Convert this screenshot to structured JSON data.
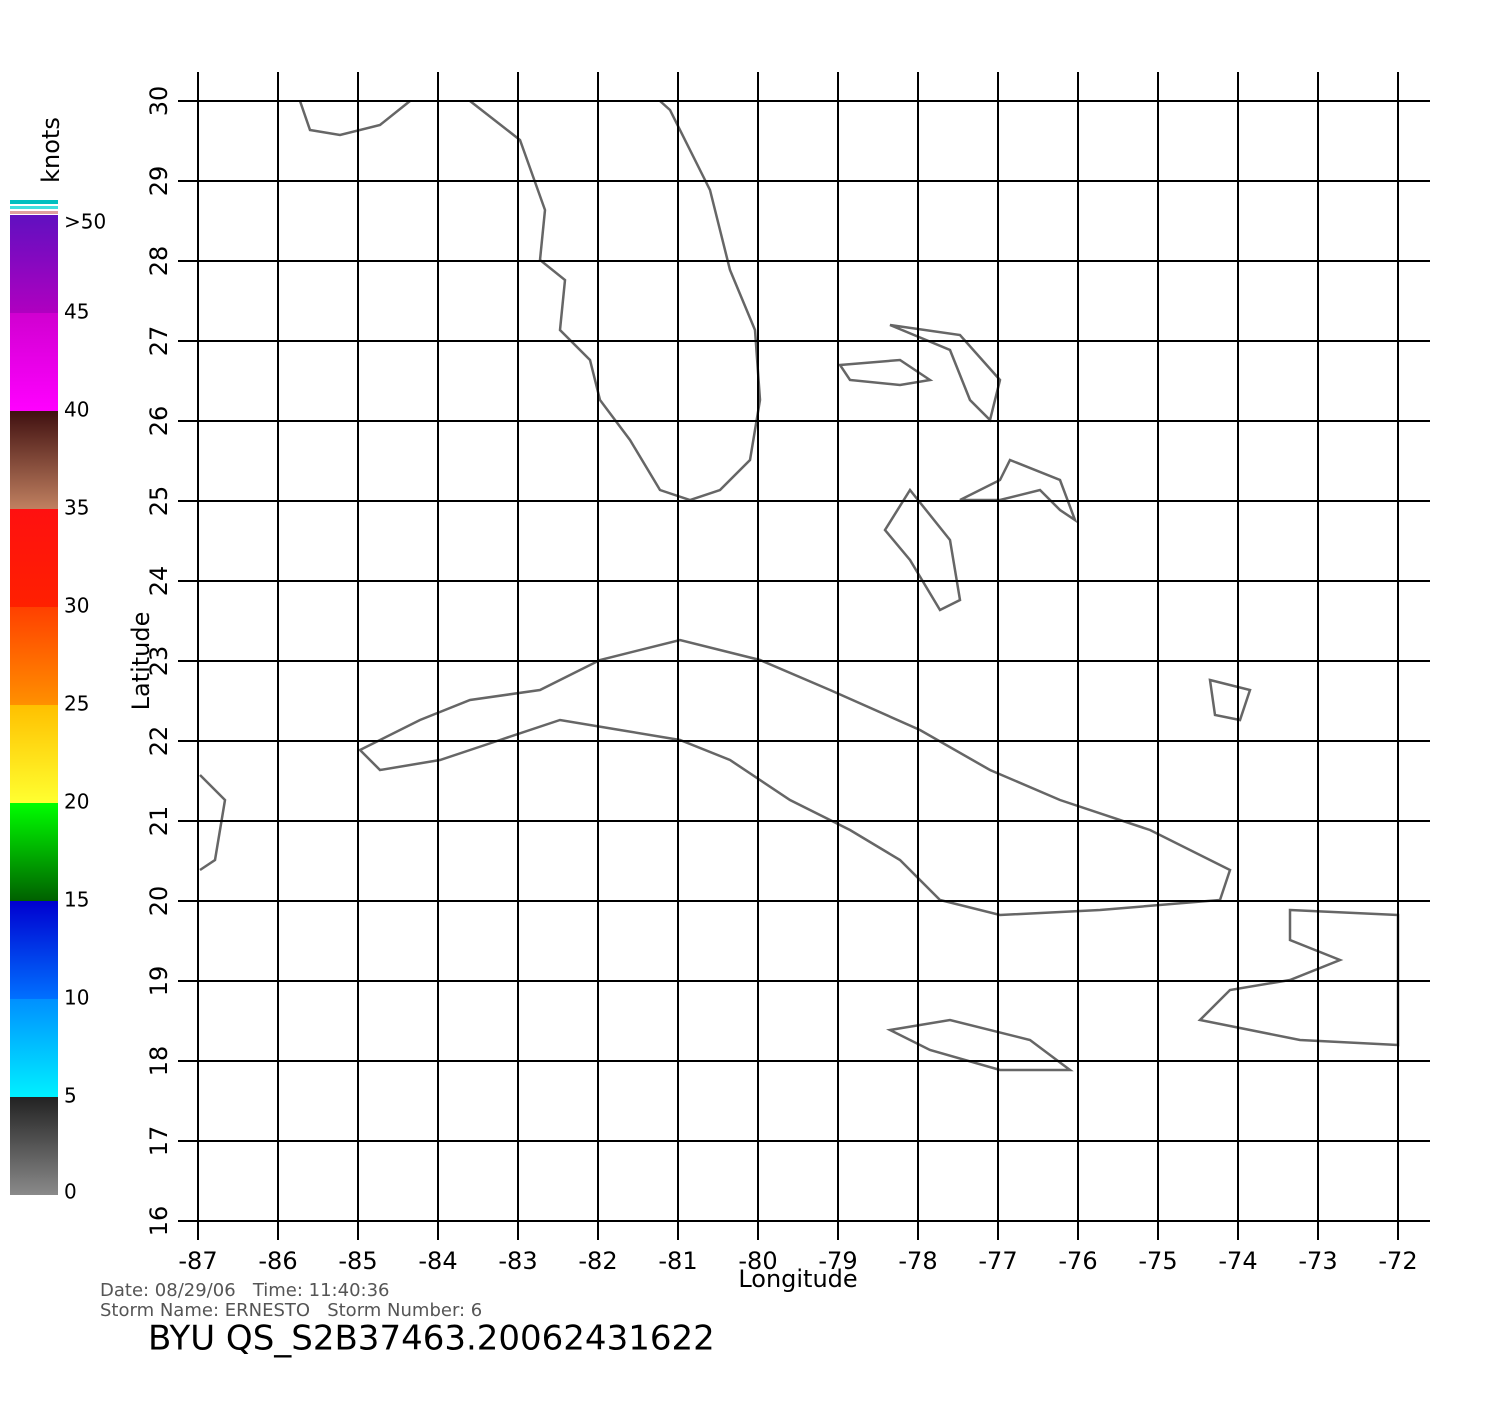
{
  "map": {
    "colorbar": {
      "title": "knots",
      "ticks": [
        0,
        5,
        10,
        15,
        20,
        25,
        30,
        35,
        40,
        45,
        {
          "value": 50,
          "label": ">50"
        }
      ],
      "colors": [
        [
          "#8a8a8a",
          "#222222"
        ],
        [
          "#00f0ff",
          "#0090ff"
        ],
        [
          "#0070ff",
          "#0000d0"
        ],
        [
          "#006000",
          "#00ff00"
        ],
        [
          "#ffff30",
          "#ffc000"
        ],
        [
          "#ff9000",
          "#ff4000"
        ],
        [
          "#ff2000",
          "#ff1010"
        ],
        [
          "#c08060",
          "#401010"
        ],
        [
          "#ff00ff",
          "#d000d0"
        ],
        [
          "#b000c0",
          "#6010c0"
        ]
      ]
    },
    "axes": {
      "xlabel": "Longitude",
      "ylabel": "Latitude",
      "xlim": [
        -87,
        -72
      ],
      "ylim": [
        16,
        30
      ],
      "xticks": [
        -87,
        -86,
        -85,
        -84,
        -83,
        -82,
        -81,
        -80,
        -79,
        -78,
        -77,
        -76,
        -75,
        -74,
        -73,
        -72
      ],
      "yticks": [
        16,
        17,
        18,
        19,
        20,
        21,
        22,
        23,
        24,
        25,
        26,
        27,
        28,
        29,
        30
      ],
      "grid": true
    },
    "footer": {
      "line1": "Date: 08/29/06   Time: 11:40:36",
      "line2": "Storm Name: ERNESTO   Storm Number: 6",
      "title": "BYU QS_S2B37463.20062431622"
    }
  }
}
